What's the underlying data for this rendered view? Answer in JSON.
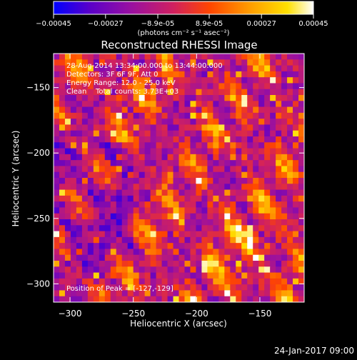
{
  "colorbar": {
    "ticks": [
      "-0.00045",
      "-0.00027",
      "-8.9e-05",
      "8.9e-05",
      "0.00027",
      "0.00045"
    ],
    "unit_label": "(photons cm⁻² s⁻¹ asec⁻²)",
    "colormap": [
      "#0000ff",
      "#5a00c8",
      "#9a10a0",
      "#d02060",
      "#ff4500",
      "#ff9a00",
      "#ffe000",
      "#ffffff"
    ]
  },
  "title": "Reconstructed RHESSI Image",
  "info": {
    "time_range": "28-Aug-2014 13:34:00.000 to 13:44:00.000",
    "detectors": "Detectors: 3F 6F 9F, Att 0",
    "energy": "Energy Range: 12.0 - 25.0 keV",
    "clean": "Clean",
    "total_counts": "Total counts: 3.73E+03",
    "peak": "Position of Peak = [-127,-129]"
  },
  "footer": {
    "date": "24-Jan-2017 09:00"
  },
  "chart_data": {
    "type": "heatmap",
    "title": "Reconstructed RHESSI Image",
    "xlabel": "Heliocentric X (arcsec)",
    "ylabel": "Heliocentric Y (arcsec)",
    "xlim": [
      -313,
      -115
    ],
    "ylim": [
      -314,
      -124
    ],
    "x_ticks": [
      -300,
      -250,
      -200,
      -150
    ],
    "y_ticks": [
      -150,
      -200,
      -250,
      -300
    ],
    "x_tick_labels": [
      "−300",
      "−250",
      "−200",
      "−150"
    ],
    "y_tick_labels": [
      "−150",
      "−200",
      "−250",
      "−300"
    ],
    "value_range": [
      -0.00045,
      0.00045
    ],
    "peak_position": [
      -127,
      -129
    ],
    "grid": false,
    "cells": {
      "nx": 44,
      "ny": 42
    }
  }
}
